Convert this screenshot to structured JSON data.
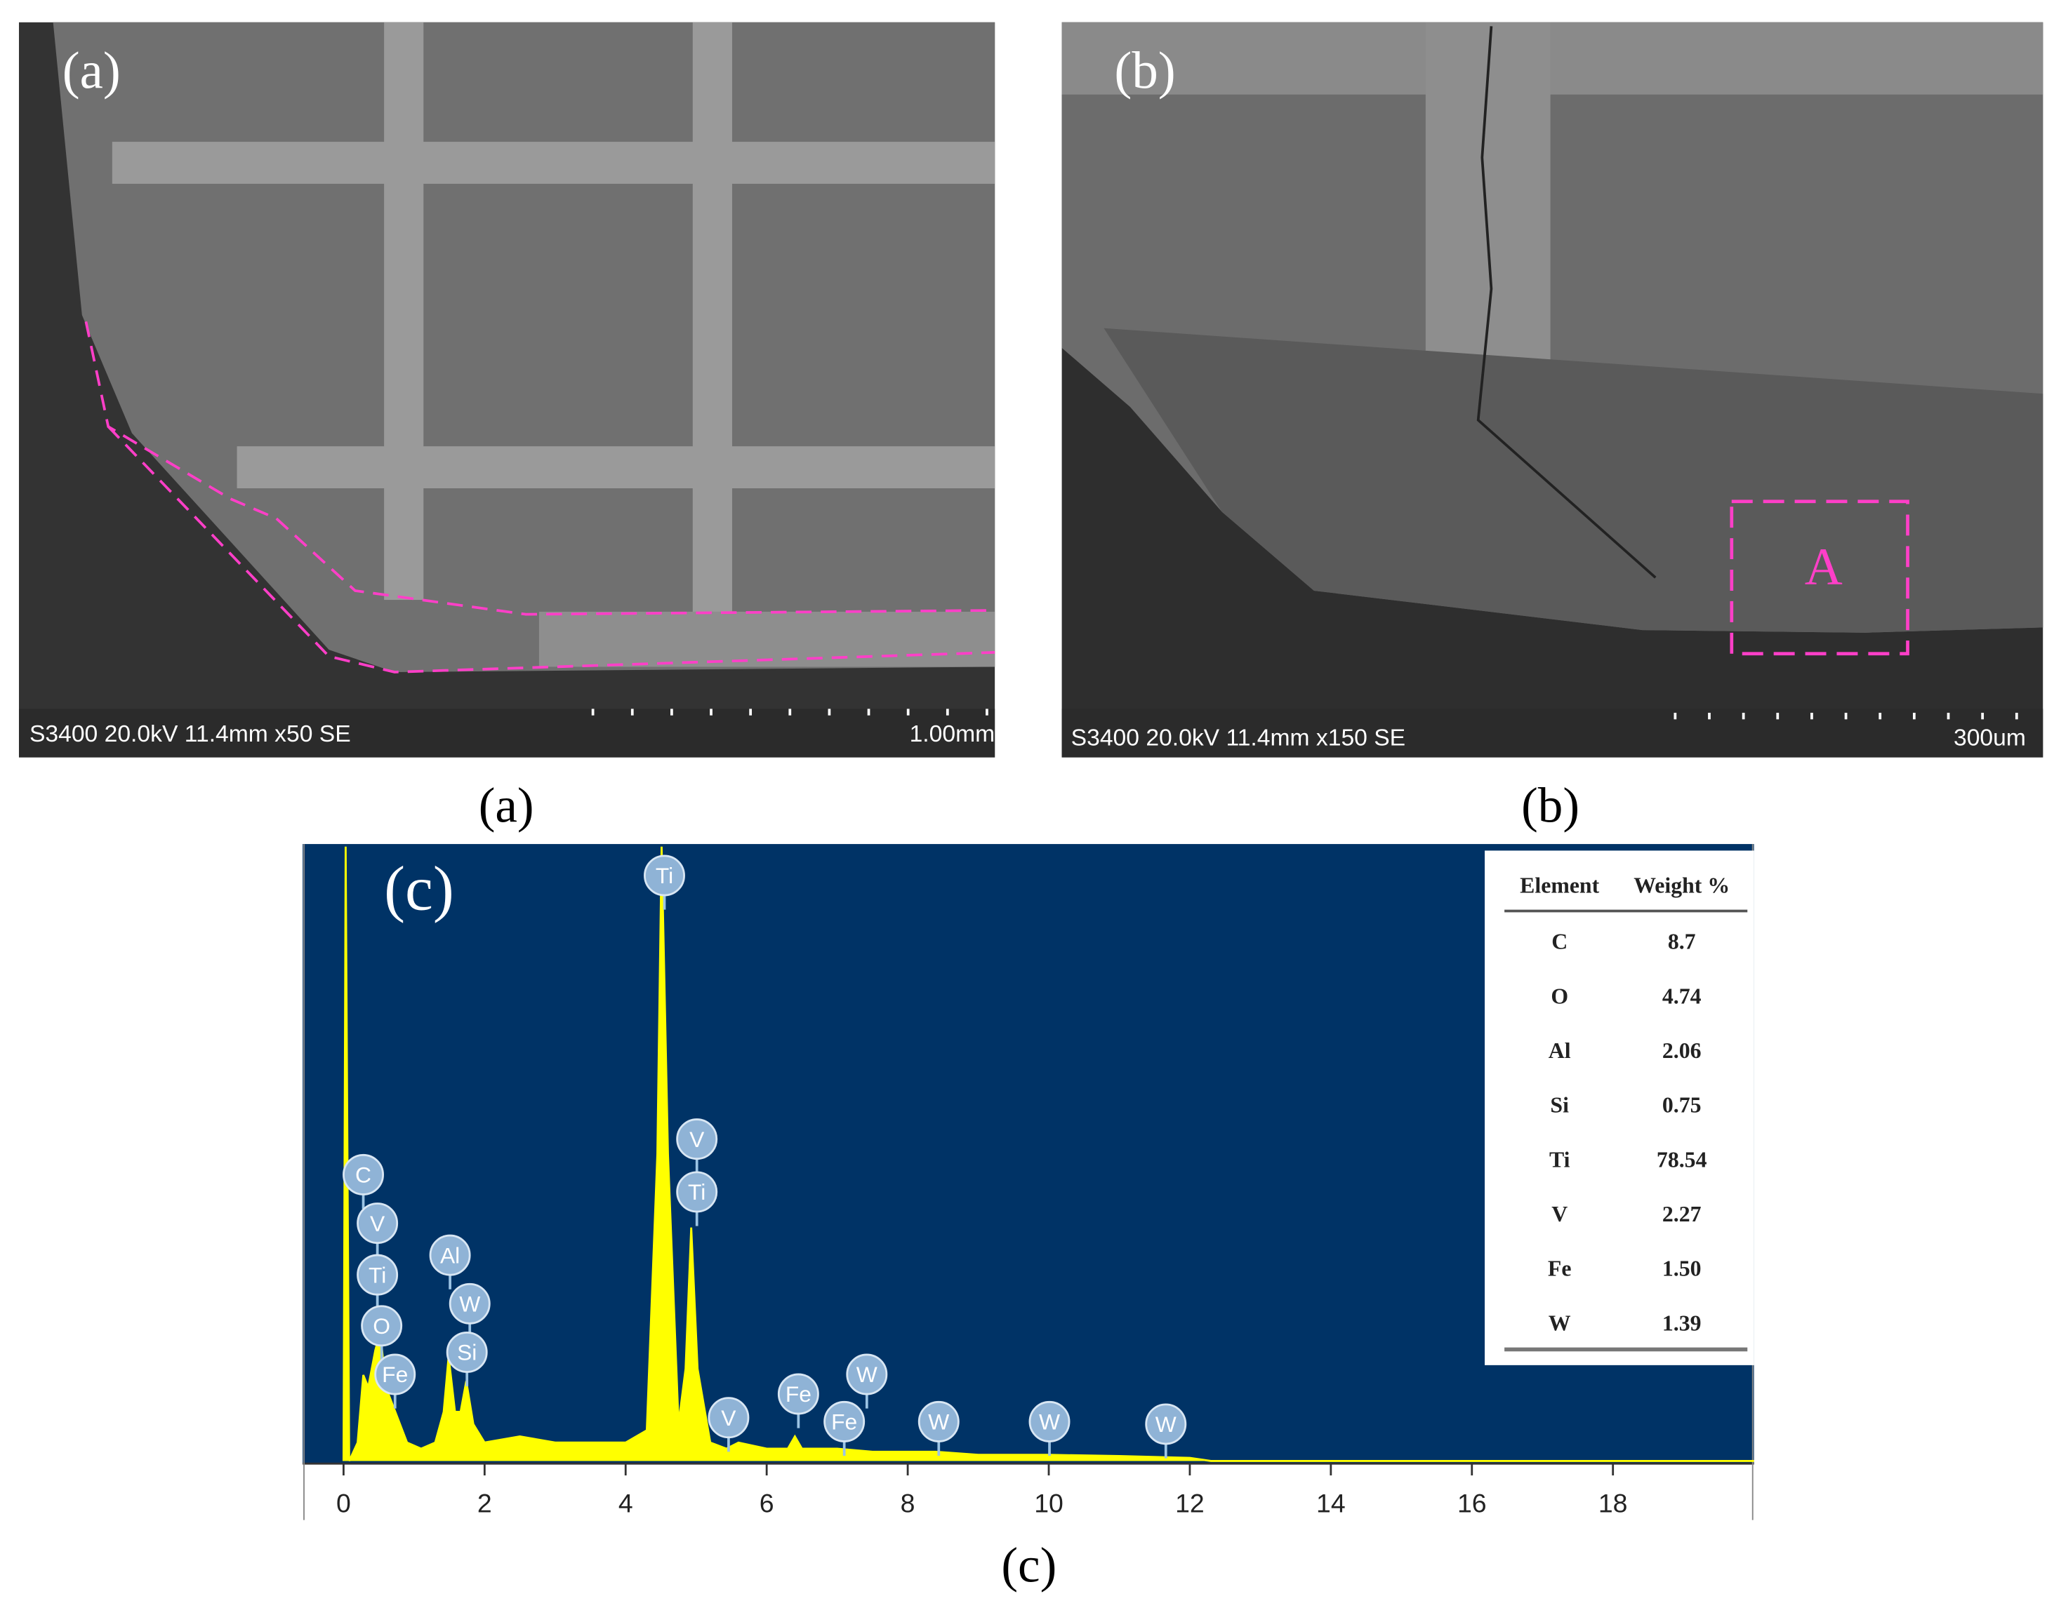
{
  "panels": [
    {
      "label": "(a)",
      "caption": "(a)",
      "info": "S3400 20.0kV 11.4mm x50 SE",
      "scale": "1.00mm"
    },
    {
      "label": "(b)",
      "caption": "(b)",
      "info": "S3400 20.0kV 11.4mm x150 SE",
      "scale": "300um",
      "region": "A"
    }
  ],
  "chart_data": {
    "type": "line",
    "label": "(c)",
    "caption": "(c)",
    "color": "#ffff00",
    "x": [
      0,
      0.03,
      0.08,
      0.2,
      0.28,
      0.35,
      0.45,
      0.52,
      0.6,
      0.7,
      0.8,
      0.9,
      1.1,
      1.3,
      1.42,
      1.49,
      1.58,
      1.66,
      1.74,
      1.84,
      2,
      2.5,
      3,
      3.5,
      4,
      4.3,
      4.45,
      4.51,
      4.6,
      4.75,
      4.85,
      4.93,
      5.02,
      5.2,
      5.43,
      5.6,
      6,
      6.3,
      6.4,
      6.5,
      7,
      7.5,
      8,
      8.4,
      9,
      10,
      11,
      12,
      12.3,
      20
    ],
    "values": [
      0,
      100,
      0,
      3,
      14,
      12,
      18,
      21,
      12,
      9,
      6,
      3,
      2,
      3,
      8,
      17,
      8,
      8,
      13,
      6,
      3,
      4,
      3,
      3,
      3,
      5,
      50,
      100,
      50,
      6,
      15,
      38,
      15,
      3,
      2,
      3,
      2,
      2,
      4,
      2,
      2,
      1.5,
      1.5,
      1.5,
      1,
      1,
      0.8,
      0.5,
      0,
      0
    ],
    "xlim": [
      -0.58,
      20
    ],
    "ylim": [
      0,
      100
    ],
    "xticks": [
      0,
      2,
      4,
      6,
      8,
      10,
      12,
      14,
      16,
      18
    ],
    "annotations": [
      {
        "text": "C",
        "x": 0.28,
        "y": 46.6
      },
      {
        "text": "V",
        "x": 0.48,
        "y": 38.7
      },
      {
        "text": "Ti",
        "x": 0.48,
        "y": 30.3
      },
      {
        "text": "O",
        "x": 0.54,
        "y": 22.0
      },
      {
        "text": "Fe",
        "x": 0.73,
        "y": 14.1
      },
      {
        "text": "Al",
        "x": 1.51,
        "y": 33.5
      },
      {
        "text": "W",
        "x": 1.79,
        "y": 25.6
      },
      {
        "text": "Si",
        "x": 1.75,
        "y": 17.7
      },
      {
        "text": "Ti",
        "x": 4.55,
        "y": 95.3
      },
      {
        "text": "V",
        "x": 5.01,
        "y": 52.4
      },
      {
        "text": "Ti",
        "x": 5.01,
        "y": 43.8
      },
      {
        "text": "V",
        "x": 5.46,
        "y": 7.05
      },
      {
        "text": "Fe",
        "x": 6.45,
        "y": 10.9
      },
      {
        "text": "Fe",
        "x": 7.1,
        "y": 6.4
      },
      {
        "text": "W",
        "x": 7.42,
        "y": 14.1
      },
      {
        "text": "W",
        "x": 8.44,
        "y": 6.4
      },
      {
        "text": "W",
        "x": 10.01,
        "y": 6.4
      },
      {
        "text": "W",
        "x": 11.66,
        "y": 6.0
      }
    ],
    "table": {
      "columns": [
        "Element",
        "Weight %"
      ],
      "rows": [
        [
          "C",
          "8.7"
        ],
        [
          "O",
          "4.74"
        ],
        [
          "Al",
          "2.06"
        ],
        [
          "Si",
          "0.75"
        ],
        [
          "Ti",
          "78.54"
        ],
        [
          "V",
          "2.27"
        ],
        [
          "Fe",
          "1.50"
        ],
        [
          "W",
          "1.39"
        ]
      ]
    }
  }
}
